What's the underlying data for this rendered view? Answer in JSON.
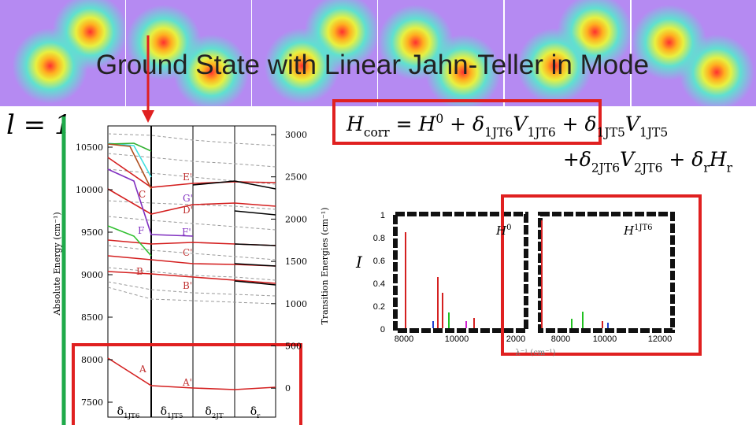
{
  "title": "Ground State with Linear Jahn-Teller in Mode",
  "mode_label": "l = 1",
  "equation": {
    "line1": [
      {
        "text": "H",
        "sub": "corr"
      },
      {
        "text": " = H",
        "sup": "0"
      },
      {
        "text": " + δ",
        "sub": "1JT6"
      },
      {
        "text": "V",
        "sub": "1JT6"
      },
      {
        "text": " + δ",
        "sub": "1JT5"
      },
      {
        "text": "V",
        "sub": "1JT5"
      }
    ],
    "line2": [
      {
        "text": "+δ",
        "sub": "2JT6"
      },
      {
        "text": "V",
        "sub": "2JT6"
      },
      {
        "text": " + δ",
        "sub": "r"
      },
      {
        "text": "H",
        "sub": "r"
      }
    ]
  },
  "energy_plot": {
    "left_axis_title": "Absolute Energy (cm⁻¹)",
    "right_axis_title": "Transition Energies (cm⁻¹)",
    "left_ticks": [
      "10500",
      "10000",
      "9500",
      "9000",
      "8500",
      "8000",
      "7500"
    ],
    "right_ticks": [
      "3000",
      "2500",
      "2000",
      "1500",
      "1000",
      "500",
      "0"
    ],
    "x_labels": [
      {
        "text": "δ",
        "sub": "1JT6"
      },
      {
        "text": "δ",
        "sub": "1JT5"
      },
      {
        "text": "δ",
        "sub": "2JT"
      },
      {
        "text": "δ",
        "sub": "r"
      }
    ],
    "state_labels": [
      "E'",
      "C",
      "G'",
      "D'",
      "F",
      "F'",
      "C'",
      "B",
      "B'",
      "A",
      "A'"
    ]
  },
  "spectra": {
    "intensity_label": "I",
    "y_ticks": [
      "1",
      "0.8",
      "0.6",
      "0.4",
      "0.2",
      "0"
    ],
    "panel1": {
      "label": {
        "text": "H",
        "sup": "0"
      },
      "x_ticks": [
        "8000",
        "10000",
        "2000"
      ]
    },
    "panel2": {
      "label": {
        "text": "H",
        "sup": "1JT6"
      },
      "x_ticks": [
        "8000",
        "10000",
        "12000"
      ]
    },
    "x_axis_title": "λ⁻¹ (cm⁻¹)"
  }
}
